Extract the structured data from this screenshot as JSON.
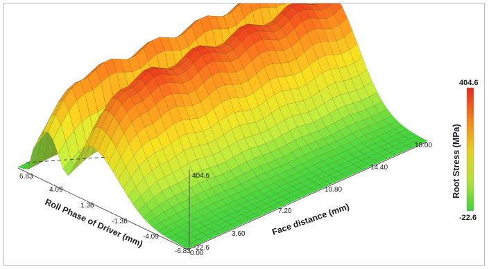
{
  "chart_data": {
    "type": "surface3d",
    "title": "",
    "x_axis": {
      "label": "Face distance (mm)",
      "ticks": [
        "0.00",
        "3.60",
        "7.20",
        "10.80",
        "14.40",
        "18.00"
      ],
      "range": [
        0,
        18
      ]
    },
    "y_axis": {
      "label": "Roll Phase of Driver (mm)",
      "ticks": [
        "6.83",
        "4.09",
        "1.36",
        "-1.36",
        "-4.09",
        "-6.83"
      ],
      "range": [
        -6.83,
        6.83
      ]
    },
    "z_axis": {
      "ticks": [
        "404.6",
        "-22.6"
      ],
      "range": [
        -22.6,
        404.6
      ]
    },
    "colorbar": {
      "title": "Root Stress (MPa)",
      "max_label": "404.6",
      "min_label": "-22.6",
      "colors": [
        "#e62a1c",
        "#f08a1c",
        "#e6d21e",
        "#b8e03a",
        "#3ed33e"
      ]
    },
    "surface": {
      "description_peak_stress_mpa": 404.6,
      "ridge_count": 2,
      "ridge_roll_phase_mm": [
        4.5,
        1.0
      ]
    }
  }
}
